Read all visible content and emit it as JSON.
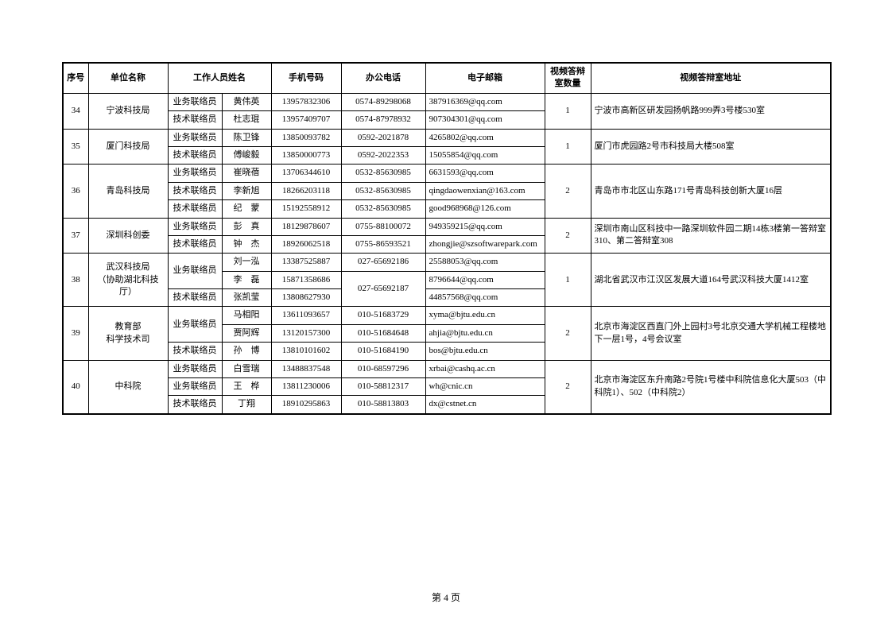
{
  "columns": [
    "序号",
    "单位名称",
    "工作人员姓名",
    "手机号码",
    "办公电话",
    "电子邮箱",
    "视频答辩室数量",
    "视频答辩室地址"
  ],
  "rows": [
    {
      "seq": "34",
      "unit": "宁波科技局",
      "role": "业务联络员",
      "name": "黄伟英",
      "phone": "13957832306",
      "tel": "0574-89298068",
      "email": "387916369@qq.com",
      "rooms": "1",
      "addr": "宁波市高新区研发园扬帆路999弄3号楼530室"
    },
    {
      "seq": "",
      "unit": "",
      "role": "技术联络员",
      "name": "杜志琨",
      "phone": "13957409707",
      "tel": "0574-87978932",
      "email": "907304301@qq.com",
      "rooms": "",
      "addr": ""
    },
    {
      "seq": "35",
      "unit": "厦门科技局",
      "role": "业务联络员",
      "name": "陈卫锋",
      "phone": "13850093782",
      "tel": "0592-2021878",
      "email": "4265802@qq.com",
      "rooms": "1",
      "addr": "厦门市虎园路2号市科技局大楼508室"
    },
    {
      "seq": "",
      "unit": "",
      "role": "技术联络员",
      "name": "傅峻毅",
      "phone": "13850000773",
      "tel": "0592-2022353",
      "email": "15055854@qq.com",
      "rooms": "",
      "addr": ""
    },
    {
      "seq": "36",
      "unit": "青岛科技局",
      "role": "业务联络员",
      "name": "崔晓蓓",
      "phone": "13706344610",
      "tel": "0532-85630985",
      "email": "6631593@qq.com",
      "rooms": "2",
      "addr": "青岛市市北区山东路171号青岛科技创新大厦16层"
    },
    {
      "seq": "",
      "unit": "",
      "role": "技术联络员",
      "name": "李新旭",
      "phone": "18266203118",
      "tel": "0532-85630985",
      "email": "qingdaowenxian@163.com",
      "rooms": "",
      "addr": ""
    },
    {
      "seq": "",
      "unit": "",
      "role": "技术联络员",
      "name": "纪　蒙",
      "phone": "15192558912",
      "tel": "0532-85630985",
      "email": "good968968@126.com",
      "rooms": "",
      "addr": ""
    },
    {
      "seq": "37",
      "unit": "深圳科创委",
      "role": "业务联络员",
      "name": "彭　真",
      "phone": "18129878607",
      "tel": "0755-88100072",
      "email": "949359215@qq.com",
      "rooms": "2",
      "addr": "深圳市南山区科技中一路深圳软件园二期14栋3楼第一答辩室310、第二答辩室308"
    },
    {
      "seq": "",
      "unit": "",
      "role": "技术联络员",
      "name": "钟　杰",
      "phone": "18926062518",
      "tel": "0755-86593521",
      "email": "zhongjie@szsoftwarepark.com",
      "rooms": "",
      "addr": ""
    },
    {
      "seq": "38",
      "unit": "武汉科技局\n（协助湖北科技厅）",
      "role": "业务联络员",
      "name": "刘一泓",
      "phone": "13387525887",
      "tel": "027-65692186",
      "email": "25588053@qq.com",
      "rooms": "1",
      "addr": "湖北省武汉市江汉区发展大道164号武汉科技大厦1412室"
    },
    {
      "seq": "",
      "unit": "",
      "role": "技术联络员",
      "name": "李　磊",
      "phone": "15871358686",
      "tel": "027-65692187",
      "email": "8796644@qq.com",
      "rooms": "",
      "addr": ""
    },
    {
      "seq": "",
      "unit": "",
      "role": "技术联络员",
      "name": "张凯莹",
      "phone": "13808627930",
      "tel": "",
      "email": "44857568@qq.com",
      "rooms": "",
      "addr": ""
    },
    {
      "seq": "39",
      "unit": "教育部\n科学技术司",
      "role": "业务联络员",
      "name": "马相阳",
      "phone": "13611093657",
      "tel": "010-51683729",
      "email": "xyma@bjtu.edu.cn",
      "rooms": "2",
      "addr": "北京市海淀区西直门外上园村3号北京交通大学机械工程楼地下一层1号，4号会议室"
    },
    {
      "seq": "",
      "unit": "",
      "role": "",
      "name": "贾阿辉",
      "phone": "13120157300",
      "tel": "010-51684648",
      "email": "ahjia@bjtu.edu.cn",
      "rooms": "",
      "addr": ""
    },
    {
      "seq": "",
      "unit": "",
      "role": "技术联络员",
      "name": "孙　博",
      "phone": "13810101602",
      "tel": "010-51684190",
      "email": "bos@bjtu.edu.cn",
      "rooms": "",
      "addr": ""
    },
    {
      "seq": "40",
      "unit": "中科院",
      "role": "业务联络员",
      "name": "白雪瑞",
      "phone": "13488837548",
      "tel": "010-68597296",
      "email": "xrbai@cashq.ac.cn",
      "rooms": "2",
      "addr": "北京市海淀区东升南路2号院1号楼中科院信息化大厦503（中科院1）、502（中科院2）"
    },
    {
      "seq": "",
      "unit": "",
      "role": "业务联络员",
      "name": "王　桦",
      "phone": "13811230006",
      "tel": "010-58812317",
      "email": "wh@cnic.cn",
      "rooms": "",
      "addr": ""
    },
    {
      "seq": "",
      "unit": "",
      "role": "技术联络员",
      "name": "丁翔",
      "phone": "18910295863",
      "tel": "010-58813803",
      "email": "dx@cstnet.cn",
      "rooms": "",
      "addr": ""
    }
  ],
  "merges": {
    "seq": [
      [
        0,
        2
      ],
      [
        2,
        2
      ],
      [
        4,
        3
      ],
      [
        7,
        2
      ],
      [
        9,
        3
      ],
      [
        12,
        3
      ],
      [
        15,
        3
      ]
    ],
    "unit": [
      [
        0,
        2
      ],
      [
        2,
        2
      ],
      [
        4,
        3
      ],
      [
        7,
        2
      ],
      [
        9,
        3
      ],
      [
        12,
        3
      ],
      [
        15,
        3
      ]
    ],
    "rooms": [
      [
        0,
        2
      ],
      [
        2,
        2
      ],
      [
        4,
        3
      ],
      [
        7,
        2
      ],
      [
        9,
        3
      ],
      [
        12,
        3
      ],
      [
        15,
        3
      ]
    ],
    "addr": [
      [
        0,
        2
      ],
      [
        2,
        2
      ],
      [
        4,
        3
      ],
      [
        7,
        2
      ],
      [
        9,
        3
      ],
      [
        12,
        3
      ],
      [
        15,
        3
      ]
    ],
    "role": [
      [
        9,
        2
      ],
      [
        12,
        2
      ]
    ],
    "tel": [
      [
        10,
        2
      ]
    ]
  },
  "footer": "第 4 页"
}
